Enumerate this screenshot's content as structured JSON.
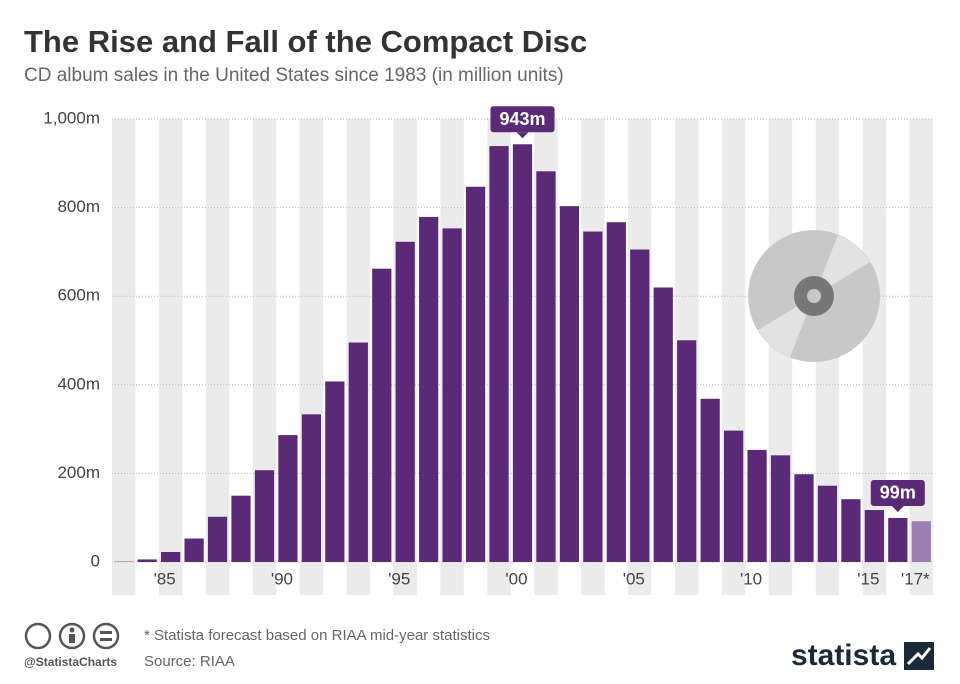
{
  "chart_data": {
    "type": "bar",
    "title": "The Rise and Fall of the Compact Disc",
    "subtitle": "CD album sales in the United States since 1983 (in million units)",
    "categories": [
      null,
      null,
      "'85",
      null,
      null,
      null,
      null,
      "'90",
      null,
      null,
      null,
      null,
      "'95",
      null,
      null,
      null,
      null,
      "'00",
      null,
      null,
      null,
      null,
      "'05",
      null,
      null,
      null,
      null,
      "'10",
      null,
      null,
      null,
      null,
      "'15",
      null,
      "'17*"
    ],
    "values": [
      0.8,
      5.8,
      22.6,
      53,
      102.1,
      149.7,
      207.2,
      286.5,
      333.3,
      407.5,
      495.4,
      662.1,
      722.9,
      778.9,
      753.1,
      847,
      938.9,
      943,
      881.9,
      803.3,
      746,
      767,
      705.4,
      619.7,
      500.5,
      368.4,
      296.6,
      253,
      240.8,
      198.2,
      172.2,
      141.8,
      117.3,
      99.4,
      92
    ],
    "value_labels": [
      null,
      null,
      null,
      null,
      null,
      null,
      null,
      null,
      null,
      null,
      null,
      null,
      null,
      null,
      null,
      null,
      null,
      "943m",
      null,
      null,
      null,
      null,
      null,
      null,
      null,
      null,
      null,
      null,
      null,
      null,
      null,
      null,
      null,
      "99m",
      null
    ],
    "colors": [
      "#5b2a76",
      "#5b2a76",
      "#5b2a76",
      "#5b2a76",
      "#5b2a76",
      "#5b2a76",
      "#5b2a76",
      "#5b2a76",
      "#5b2a76",
      "#5b2a76",
      "#5b2a76",
      "#5b2a76",
      "#5b2a76",
      "#5b2a76",
      "#5b2a76",
      "#5b2a76",
      "#5b2a76",
      "#5b2a76",
      "#5b2a76",
      "#5b2a76",
      "#5b2a76",
      "#5b2a76",
      "#5b2a76",
      "#5b2a76",
      "#5b2a76",
      "#5b2a76",
      "#5b2a76",
      "#5b2a76",
      "#5b2a76",
      "#5b2a76",
      "#5b2a76",
      "#5b2a76",
      "#5b2a76",
      "#5b2a76",
      "#9a7fb0"
    ],
    "ylim": [
      0,
      1000
    ],
    "yticks": [
      0,
      {
        "value": 200,
        "label": "200m"
      },
      {
        "value": 400,
        "label": "400m"
      },
      {
        "value": 600,
        "label": "600m"
      },
      {
        "value": 800,
        "label": "800m"
      },
      {
        "value": 1000,
        "label": "1,000m"
      }
    ],
    "grid": true,
    "footnote": "* Statista forecast based on RIAA mid-year statistics",
    "source": "Source: RIAA",
    "handle": "@StatistaCharts",
    "brand": "statista"
  }
}
